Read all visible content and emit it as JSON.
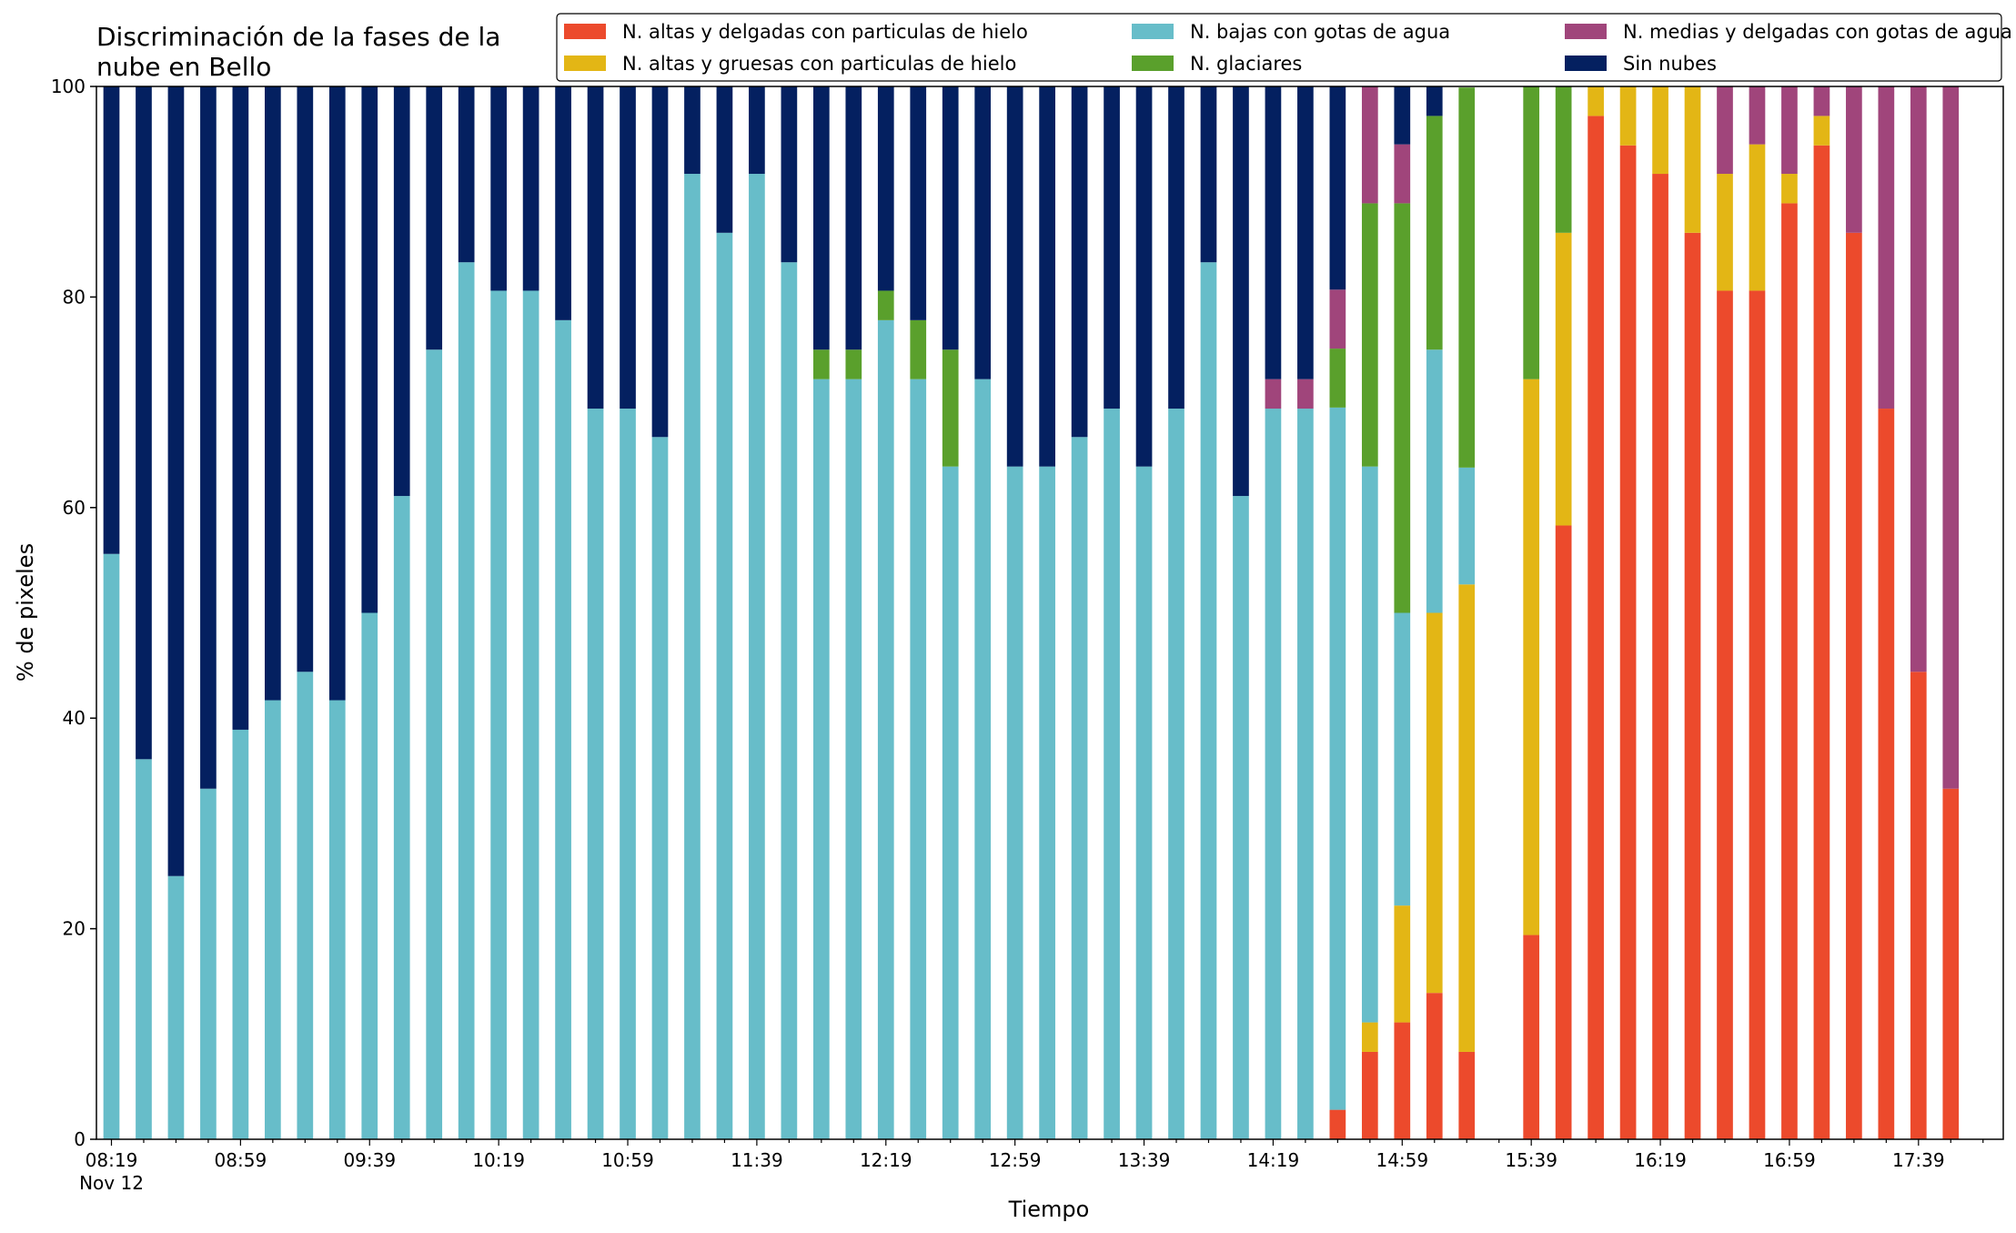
{
  "chart_data": {
    "type": "bar",
    "stacked": true,
    "title": "Discriminación de la fases de la nube en Bello",
    "title_lines": [
      "Discriminación de la fases de la",
      "nube en Bello"
    ],
    "xlabel": "Tiempo",
    "ylabel": "% de pixeles",
    "ylim": [
      0,
      100
    ],
    "yticks": [
      0,
      20,
      40,
      60,
      80,
      100
    ],
    "x_start": "08:19",
    "x_step_minutes": 10,
    "x_date_label": "Nov 12",
    "xtick_labels": [
      "08:19",
      "08:59",
      "09:39",
      "10:19",
      "10:59",
      "11:39",
      "12:19",
      "12:59",
      "13:39",
      "14:19",
      "14:59",
      "15:39",
      "16:19",
      "16:59",
      "17:39"
    ],
    "grid": false,
    "legend_position": "top",
    "series": [
      {
        "name": "N. altas y delgadas con particulas de hielo",
        "color": "#ec4a2c",
        "values": [
          0,
          0,
          0,
          0,
          0,
          0,
          0,
          0,
          0,
          0,
          0,
          0,
          0,
          0,
          0,
          0,
          0,
          0,
          0,
          0,
          0,
          0,
          0,
          0,
          0,
          0,
          0,
          0,
          0,
          0,
          0,
          0,
          0,
          0,
          0,
          0,
          0,
          0,
          2.8,
          8.3,
          11.1,
          13.9,
          8.3,
          0,
          19.4,
          58.3,
          97.2,
          94.4,
          91.7,
          86.1,
          80.6,
          80.6,
          88.9,
          94.4,
          86.1,
          69.4,
          44.4,
          33.3
        ]
      },
      {
        "name": "N. altas y gruesas con particulas de hielo",
        "color": "#e3b615",
        "values": [
          0,
          0,
          0,
          0,
          0,
          0,
          0,
          0,
          0,
          0,
          0,
          0,
          0,
          0,
          0,
          0,
          0,
          0,
          0,
          0,
          0,
          0,
          0,
          0,
          0,
          0,
          0,
          0,
          0,
          0,
          0,
          0,
          0,
          0,
          0,
          0,
          0,
          0,
          0,
          2.8,
          11.1,
          36.1,
          44.4,
          0,
          52.8,
          27.8,
          2.8,
          5.6,
          8.3,
          13.9,
          11.1,
          13.9,
          2.8,
          2.8,
          0,
          0,
          0,
          0
        ]
      },
      {
        "name": "N. bajas con gotas de agua",
        "color": "#67bdc9",
        "values": [
          55.6,
          36.1,
          25,
          33.3,
          38.9,
          41.7,
          44.4,
          41.7,
          50,
          61.1,
          75,
          83.3,
          80.6,
          80.6,
          77.8,
          69.4,
          69.4,
          66.7,
          91.7,
          86.1,
          91.7,
          83.3,
          72.2,
          72.2,
          77.8,
          72.2,
          63.9,
          72.2,
          63.9,
          63.9,
          66.7,
          69.4,
          63.9,
          69.4,
          83.3,
          61.1,
          69.4,
          69.4,
          66.7,
          52.8,
          27.8,
          25,
          11.1,
          0,
          0,
          0,
          0,
          0,
          0,
          0,
          0,
          0,
          0,
          0,
          0,
          0,
          0,
          0
        ]
      },
      {
        "name": "N. glaciares",
        "color": "#5aa02c",
        "values": [
          0,
          0,
          0,
          0,
          0,
          0,
          0,
          0,
          0,
          0,
          0,
          0,
          0,
          0,
          0,
          0,
          0,
          0,
          0,
          0,
          0,
          0,
          2.8,
          2.8,
          2.8,
          5.6,
          11.1,
          0,
          0,
          0,
          0,
          0,
          0,
          0,
          0,
          0,
          0,
          0,
          5.6,
          25,
          38.9,
          22.2,
          36.1,
          0,
          27.8,
          13.9,
          0,
          0,
          0,
          0,
          0,
          0,
          0,
          0,
          0,
          0,
          0,
          0
        ]
      },
      {
        "name": "N. medias y delgadas con gotas de agua",
        "color": "#a0457b",
        "values": [
          0,
          0,
          0,
          0,
          0,
          0,
          0,
          0,
          0,
          0,
          0,
          0,
          0,
          0,
          0,
          0,
          0,
          0,
          0,
          0,
          0,
          0,
          0,
          0,
          0,
          0,
          0,
          0,
          0,
          0,
          0,
          0,
          0,
          0,
          0,
          0,
          2.8,
          2.8,
          5.6,
          11.1,
          5.6,
          0,
          0,
          0,
          0,
          0,
          0,
          0,
          0,
          0,
          8.3,
          5.6,
          8.3,
          2.8,
          13.9,
          30.6,
          55.6,
          66.7
        ]
      },
      {
        "name": "Sin nubes",
        "color": "#042060",
        "values": [
          44.4,
          63.9,
          75,
          66.7,
          61.1,
          58.3,
          55.6,
          58.3,
          50,
          38.9,
          25,
          16.7,
          19.4,
          19.4,
          22.2,
          30.6,
          30.6,
          33.3,
          8.3,
          13.9,
          8.3,
          16.7,
          25,
          25,
          19.4,
          22.2,
          25,
          27.8,
          36.1,
          36.1,
          33.3,
          30.6,
          36.1,
          30.6,
          16.7,
          38.9,
          27.8,
          27.8,
          19.4,
          0,
          5.6,
          2.8,
          0,
          0,
          0,
          0,
          0,
          0,
          0,
          0,
          0,
          0,
          0,
          0,
          0,
          0,
          0,
          0
        ]
      }
    ],
    "legend_order": [
      0,
      1,
      2,
      3,
      4,
      5
    ]
  }
}
